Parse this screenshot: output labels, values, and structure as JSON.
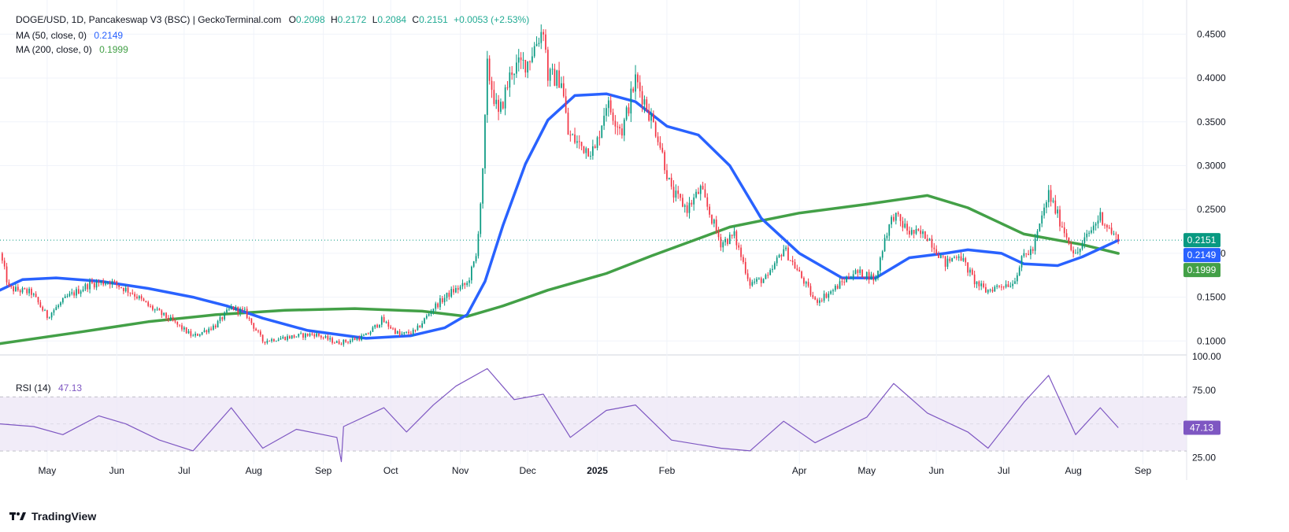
{
  "header": {
    "symbol": "DOGE/USD, 1D, Pancakeswap V3 (BSC) | GeckoTerminal.com",
    "o_label": "O",
    "o_value": "0.2098",
    "h_label": "H",
    "h_value": "0.2172",
    "l_label": "L",
    "l_value": "0.2084",
    "c_label": "C",
    "c_value": "0.2151",
    "change": "+0.0053 (+2.53%)"
  },
  "indicators": {
    "ma50_label": "MA (50, close, 0)",
    "ma50_value": "0.2149",
    "ma200_label": "MA (200, close, 0)",
    "ma200_value": "0.1999",
    "rsi_label": "RSI (14)",
    "rsi_value": "47.13"
  },
  "branding": {
    "logo_text": "TradingView"
  },
  "colors": {
    "up": "#089981",
    "down": "#f23645",
    "ma50": "#2962ff",
    "ma200": "#43a047",
    "rsi": "#7e57c2",
    "rsi_band": "#ede7f6",
    "grid": "#f0f3fa"
  },
  "chart_data": [
    {
      "type": "candlestick",
      "title": "DOGE/USD, 1D",
      "x_range": [
        "2024-04-10",
        "2025-09-18"
      ],
      "ylim": [
        0.085,
        0.48
      ],
      "y_ticks": [
        "0.1000",
        "0.1500",
        "0.2000",
        "0.2500",
        "0.3000",
        "0.3500",
        "0.4000",
        "0.4500"
      ],
      "x_ticks": [
        {
          "date": "2024-05-01",
          "label": "May"
        },
        {
          "date": "2024-06-01",
          "label": "Jun"
        },
        {
          "date": "2024-07-01",
          "label": "Jul"
        },
        {
          "date": "2024-08-01",
          "label": "Aug"
        },
        {
          "date": "2024-09-01",
          "label": "Sep"
        },
        {
          "date": "2024-10-01",
          "label": "Oct"
        },
        {
          "date": "2024-11-01",
          "label": "Nov"
        },
        {
          "date": "2024-12-01",
          "label": "Dec"
        },
        {
          "date": "2025-01-01",
          "label": "2025"
        },
        {
          "date": "2025-02-01",
          "label": "Feb"
        },
        {
          "date": "2025-04-01",
          "label": "Apr"
        },
        {
          "date": "2025-05-01",
          "label": "May"
        },
        {
          "date": "2025-06-01",
          "label": "Jun"
        },
        {
          "date": "2025-07-01",
          "label": "Jul"
        },
        {
          "date": "2025-08-01",
          "label": "Aug"
        },
        {
          "date": "2025-09-01",
          "label": "Sep"
        }
      ],
      "last_close": 0.2151,
      "price_labels": [
        {
          "value": 0.2151,
          "text": "0.2151",
          "color": "#089981"
        },
        {
          "value": 0.2149,
          "text": "0.2149",
          "color": "#2962ff"
        },
        {
          "value": 0.1999,
          "text": "0.1999",
          "color": "#43a047"
        }
      ],
      "close_path": [
        [
          "2024-04-10",
          0.2
        ],
        [
          "2024-04-14",
          0.16
        ],
        [
          "2024-04-24",
          0.155
        ],
        [
          "2024-05-01",
          0.128
        ],
        [
          "2024-05-10",
          0.15
        ],
        [
          "2024-05-20",
          0.165
        ],
        [
          "2024-05-29",
          0.168
        ],
        [
          "2024-06-08",
          0.155
        ],
        [
          "2024-06-15",
          0.14
        ],
        [
          "2024-06-25",
          0.124
        ],
        [
          "2024-07-05",
          0.105
        ],
        [
          "2024-07-15",
          0.118
        ],
        [
          "2024-07-22",
          0.138
        ],
        [
          "2024-07-28",
          0.133
        ],
        [
          "2024-08-05",
          0.1
        ],
        [
          "2024-08-15",
          0.104
        ],
        [
          "2024-08-28",
          0.108
        ],
        [
          "2024-09-07",
          0.098
        ],
        [
          "2024-09-12",
          0.1
        ],
        [
          "2024-09-20",
          0.106
        ],
        [
          "2024-09-27",
          0.124
        ],
        [
          "2024-10-05",
          0.107
        ],
        [
          "2024-10-12",
          0.111
        ],
        [
          "2024-10-20",
          0.138
        ],
        [
          "2024-10-28",
          0.156
        ],
        [
          "2024-11-04",
          0.165
        ],
        [
          "2024-11-08",
          0.196
        ],
        [
          "2024-11-11",
          0.29
        ],
        [
          "2024-11-13",
          0.412
        ],
        [
          "2024-11-18",
          0.356
        ],
        [
          "2024-11-24",
          0.41
        ],
        [
          "2024-12-01",
          0.419
        ],
        [
          "2024-12-08",
          0.458
        ],
        [
          "2024-12-10",
          0.402
        ],
        [
          "2024-12-16",
          0.398
        ],
        [
          "2024-12-19",
          0.336
        ],
        [
          "2024-12-25",
          0.322
        ],
        [
          "2024-12-31",
          0.317
        ],
        [
          "2025-01-05",
          0.372
        ],
        [
          "2025-01-12",
          0.34
        ],
        [
          "2025-01-18",
          0.398
        ],
        [
          "2025-01-22",
          0.374
        ],
        [
          "2025-01-28",
          0.334
        ],
        [
          "2025-02-03",
          0.27
        ],
        [
          "2025-02-10",
          0.251
        ],
        [
          "2025-02-16",
          0.273
        ],
        [
          "2025-02-25",
          0.212
        ],
        [
          "2025-03-03",
          0.22
        ],
        [
          "2025-03-10",
          0.166
        ],
        [
          "2025-03-18",
          0.172
        ],
        [
          "2025-03-25",
          0.206
        ],
        [
          "2025-04-03",
          0.168
        ],
        [
          "2025-04-08",
          0.145
        ],
        [
          "2025-04-15",
          0.156
        ],
        [
          "2025-04-25",
          0.178
        ],
        [
          "2025-05-01",
          0.176
        ],
        [
          "2025-05-05",
          0.17
        ],
        [
          "2025-05-09",
          0.218
        ],
        [
          "2025-05-13",
          0.244
        ],
        [
          "2025-05-20",
          0.224
        ],
        [
          "2025-05-28",
          0.22
        ],
        [
          "2025-06-05",
          0.188
        ],
        [
          "2025-06-11",
          0.2
        ],
        [
          "2025-06-18",
          0.168
        ],
        [
          "2025-06-23",
          0.157
        ],
        [
          "2025-06-30",
          0.164
        ],
        [
          "2025-07-05",
          0.166
        ],
        [
          "2025-07-10",
          0.198
        ],
        [
          "2025-07-14",
          0.204
        ],
        [
          "2025-07-21",
          0.268
        ],
        [
          "2025-07-26",
          0.237
        ],
        [
          "2025-08-02",
          0.197
        ],
        [
          "2025-08-08",
          0.223
        ],
        [
          "2025-08-13",
          0.243
        ],
        [
          "2025-08-18",
          0.224
        ],
        [
          "2025-08-21",
          0.2151
        ]
      ],
      "series": [
        {
          "name": "MA (50, close, 0)",
          "points": [
            [
              "2024-04-10",
              0.158
            ],
            [
              "2024-04-20",
              0.17
            ],
            [
              "2024-05-05",
              0.172
            ],
            [
              "2024-05-25",
              0.168
            ],
            [
              "2024-06-15",
              0.16
            ],
            [
              "2024-07-05",
              0.15
            ],
            [
              "2024-07-20",
              0.14
            ],
            [
              "2024-08-05",
              0.126
            ],
            [
              "2024-08-25",
              0.112
            ],
            [
              "2024-09-20",
              0.103
            ],
            [
              "2024-10-10",
              0.106
            ],
            [
              "2024-10-25",
              0.115
            ],
            [
              "2024-11-04",
              0.13
            ],
            [
              "2024-11-12",
              0.168
            ],
            [
              "2024-11-20",
              0.232
            ],
            [
              "2024-11-30",
              0.302
            ],
            [
              "2024-12-10",
              0.352
            ],
            [
              "2024-12-22",
              0.38
            ],
            [
              "2025-01-05",
              0.382
            ],
            [
              "2025-01-18",
              0.373
            ],
            [
              "2025-02-01",
              0.345
            ],
            [
              "2025-02-15",
              0.335
            ],
            [
              "2025-03-01",
              0.3
            ],
            [
              "2025-03-15",
              0.24
            ],
            [
              "2025-04-01",
              0.2
            ],
            [
              "2025-04-20",
              0.172
            ],
            [
              "2025-05-05",
              0.172
            ],
            [
              "2025-05-20",
              0.195
            ],
            [
              "2025-06-05",
              0.2
            ],
            [
              "2025-06-15",
              0.204
            ],
            [
              "2025-06-30",
              0.2
            ],
            [
              "2025-07-10",
              0.188
            ],
            [
              "2025-07-25",
              0.186
            ],
            [
              "2025-08-05",
              0.196
            ],
            [
              "2025-08-21",
              0.2149
            ]
          ]
        },
        {
          "name": "MA (200, close, 0)",
          "points": [
            [
              "2024-04-10",
              0.097
            ],
            [
              "2024-05-15",
              0.11
            ],
            [
              "2024-06-15",
              0.122
            ],
            [
              "2024-07-15",
              0.13
            ],
            [
              "2024-08-15",
              0.135
            ],
            [
              "2024-09-15",
              0.137
            ],
            [
              "2024-10-15",
              0.134
            ],
            [
              "2024-11-04",
              0.128
            ],
            [
              "2024-11-20",
              0.14
            ],
            [
              "2024-12-10",
              0.158
            ],
            [
              "2025-01-05",
              0.177
            ],
            [
              "2025-01-25",
              0.197
            ],
            [
              "2025-02-10",
              0.212
            ],
            [
              "2025-03-01",
              0.23
            ],
            [
              "2025-04-01",
              0.246
            ],
            [
              "2025-05-01",
              0.256
            ],
            [
              "2025-05-28",
              0.266
            ],
            [
              "2025-06-15",
              0.252
            ],
            [
              "2025-07-10",
              0.222
            ],
            [
              "2025-08-05",
              0.21
            ],
            [
              "2025-08-21",
              0.1999
            ]
          ]
        }
      ]
    },
    {
      "type": "line",
      "title": "RSI (14)",
      "ylim": [
        20,
        100
      ],
      "y_ticks": [
        "25.00",
        "75.00",
        "100.00"
      ],
      "bands": [
        30,
        50,
        70
      ],
      "series": [
        {
          "name": "RSI (14)",
          "points": [
            [
              "2024-04-10",
              50
            ],
            [
              "2024-04-25",
              48
            ],
            [
              "2024-05-08",
              42
            ],
            [
              "2024-05-24",
              56
            ],
            [
              "2024-06-05",
              50
            ],
            [
              "2024-06-20",
              38
            ],
            [
              "2024-07-05",
              30
            ],
            [
              "2024-07-22",
              62
            ],
            [
              "2024-08-05",
              32
            ],
            [
              "2024-08-20",
              46
            ],
            [
              "2024-09-07",
              40
            ],
            [
              "2024-09-09",
              22
            ],
            [
              "2024-09-10",
              48
            ],
            [
              "2024-09-28",
              62
            ],
            [
              "2024-10-08",
              44
            ],
            [
              "2024-10-20",
              64
            ],
            [
              "2024-10-30",
              78
            ],
            [
              "2024-11-13",
              91
            ],
            [
              "2024-11-25",
              68
            ],
            [
              "2024-12-08",
              72
            ],
            [
              "2024-12-20",
              40
            ],
            [
              "2025-01-05",
              60
            ],
            [
              "2025-01-18",
              64
            ],
            [
              "2025-02-03",
              38
            ],
            [
              "2025-02-25",
              32
            ],
            [
              "2025-03-10",
              30
            ],
            [
              "2025-03-25",
              52
            ],
            [
              "2025-04-08",
              36
            ],
            [
              "2025-05-01",
              55
            ],
            [
              "2025-05-13",
              80
            ],
            [
              "2025-05-28",
              58
            ],
            [
              "2025-06-15",
              44
            ],
            [
              "2025-06-24",
              32
            ],
            [
              "2025-07-10",
              66
            ],
            [
              "2025-07-21",
              86
            ],
            [
              "2025-08-02",
              42
            ],
            [
              "2025-08-13",
              62
            ],
            [
              "2025-08-21",
              47.13
            ]
          ]
        }
      ]
    }
  ]
}
